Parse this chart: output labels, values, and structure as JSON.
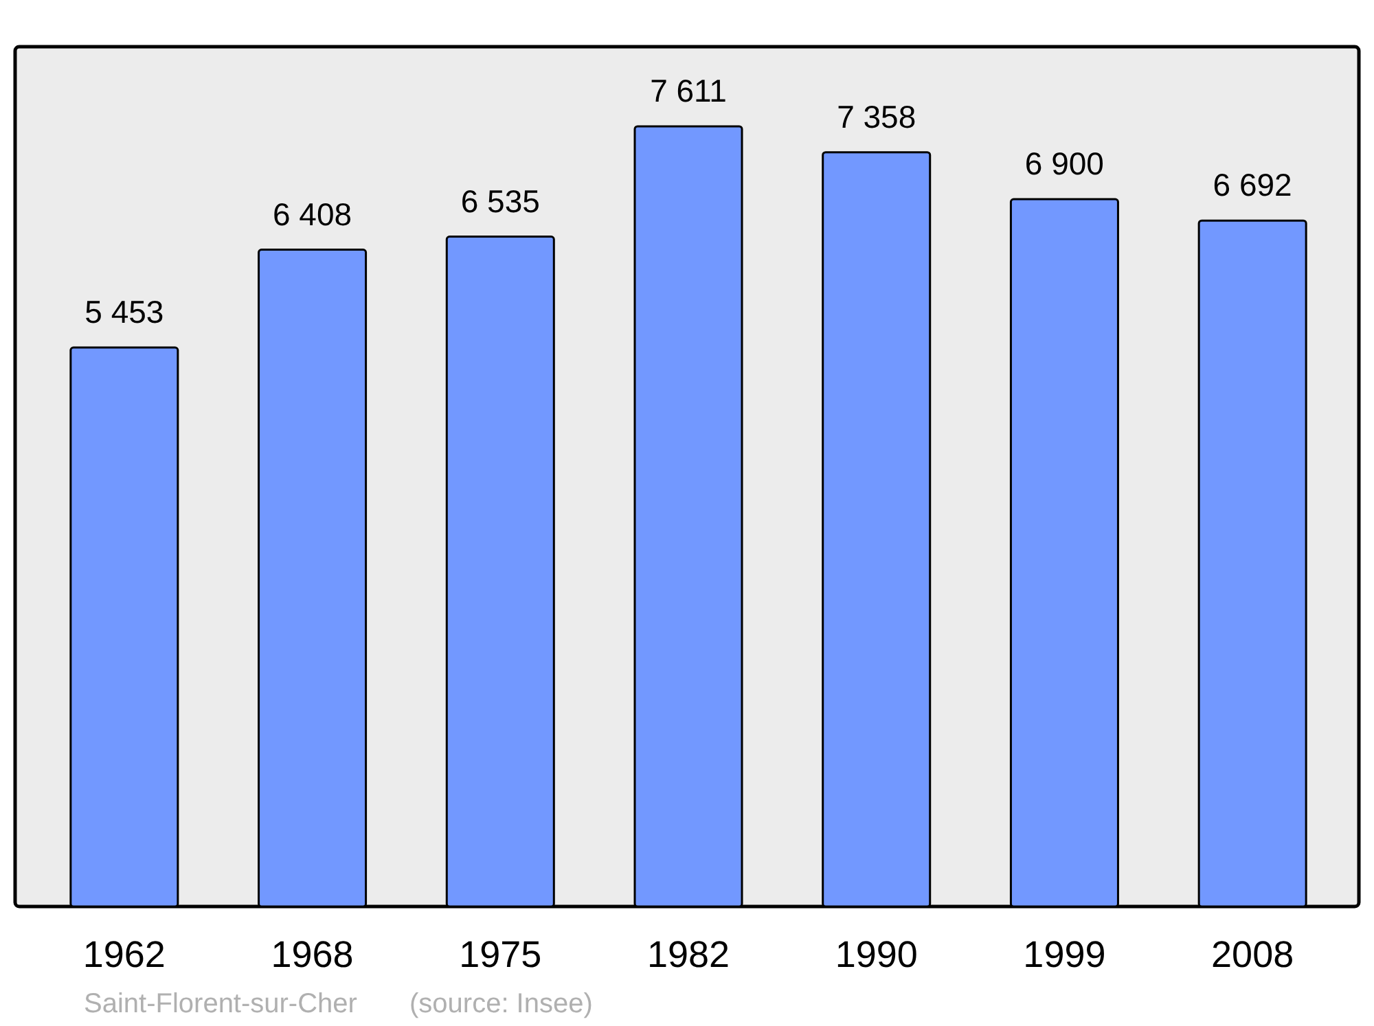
{
  "chart_data": {
    "type": "bar",
    "categories": [
      "1962",
      "1968",
      "1975",
      "1982",
      "1990",
      "1999",
      "2008"
    ],
    "values": [
      5453,
      6408,
      6535,
      7611,
      7358,
      6900,
      6692
    ],
    "value_labels": [
      "5 453",
      "6 408",
      "6 535",
      "7 611",
      "7 358",
      "6 900",
      "6 692"
    ],
    "color": "#7298ff",
    "annotations": [
      "Saint-Florent-sur-Cher",
      "(source: Insee)"
    ]
  }
}
